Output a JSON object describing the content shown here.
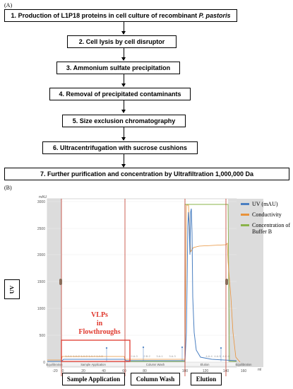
{
  "panel_a_label": "(A)",
  "panel_b_label": "(B)",
  "steps": [
    {
      "num": "1.",
      "text": "Production of L1P18 proteins in cell culture of recombinant ",
      "italic": "P. pastoris"
    },
    {
      "num": "2.",
      "text": "Cell lysis by cell disruptor",
      "italic": ""
    },
    {
      "num": "3.",
      "text": "Ammonium sulfate precipitation",
      "italic": ""
    },
    {
      "num": "4.",
      "text": "Removal of precipitated contaminants",
      "italic": ""
    },
    {
      "num": "5.",
      "text": "Size exclusion chromatography",
      "italic": ""
    },
    {
      "num": "6.",
      "text": "Ultracentrifugation with sucrose cushions",
      "italic": ""
    },
    {
      "num": "7.",
      "text": "Further purification and concentration by Ultrafiltration 1,000,000 Da",
      "italic": ""
    }
  ],
  "chart": {
    "y_unit": "mAU",
    "x_unit": "ml",
    "y_label_box": "UV",
    "y_ticks": [
      "3000",
      "2500",
      "2000",
      "1500",
      "1000",
      "500",
      "0"
    ],
    "x_ticks": [
      "-20",
      "0",
      "20",
      "40",
      "60",
      "80",
      "100",
      "120",
      "140",
      "160"
    ],
    "phase_labels": [
      "Equilibration",
      "Sample Application",
      "Column Wash",
      "Elution",
      "Equilibration"
    ],
    "fraction_labels": [
      "1.A.1",
      "1.A.2",
      "1.A.3",
      "1.A.4",
      "1.A.5",
      "2.A.3",
      "2.B.2",
      "3.A.1",
      "3.A.3",
      "4.A.4",
      "4.A.5",
      "4.C.4"
    ],
    "legend": [
      {
        "label": "UV (mAU)",
        "color": "#4a7fc1"
      },
      {
        "label": "Conductivity",
        "color": "#e8923a"
      },
      {
        "label": "Concentration of Buffer B",
        "color": "#8ab34a"
      }
    ],
    "vlp_text": [
      "VLPs",
      "in",
      "Flowthroughs"
    ],
    "bottom_labels": [
      "Sample Application",
      "Column Wash",
      "Elution"
    ],
    "colors": {
      "uv": "#4a7fc1",
      "cond": "#e8923a",
      "buffer": "#8ab34a",
      "divider": "#c0392b",
      "highlight": "#e03a2f"
    }
  }
}
